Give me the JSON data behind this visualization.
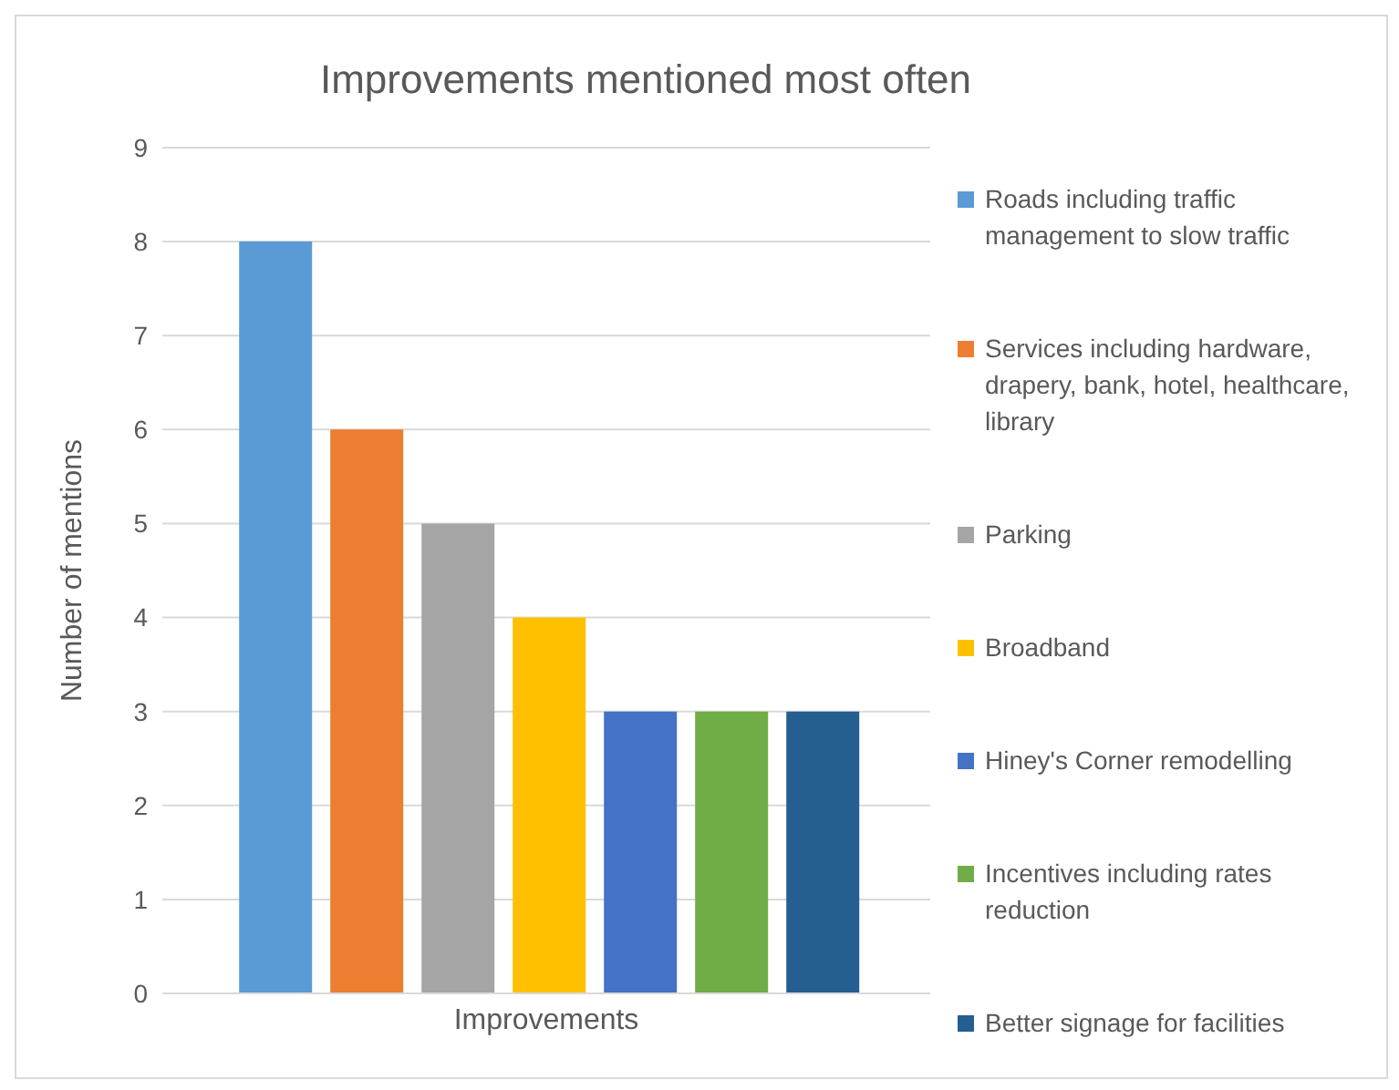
{
  "chart_data": {
    "type": "bar",
    "title": "Improvements mentioned most often",
    "ylabel": "Number of mentions",
    "categories": [
      "Improvements"
    ],
    "series": [
      {
        "name": "Roads including traffic management to slow traffic",
        "color": "#5b9bd5",
        "values": [
          8
        ]
      },
      {
        "name": "Services including hardware, drapery, bank, hotel, healthcare, library",
        "color": "#ed7d31",
        "values": [
          6
        ]
      },
      {
        "name": "Parking",
        "color": "#a5a5a5",
        "values": [
          5
        ]
      },
      {
        "name": "Broadband",
        "color": "#ffc000",
        "values": [
          4
        ]
      },
      {
        "name": "Hiney's Corner remodelling",
        "color": "#4472c4",
        "values": [
          3
        ]
      },
      {
        "name": "Incentives including rates reduction",
        "color": "#70ad47",
        "values": [
          3
        ]
      },
      {
        "name": "Better signage for facilities",
        "color": "#255e91",
        "values": [
          3
        ]
      }
    ],
    "ylim": [
      0,
      9
    ],
    "yticks": [
      0,
      1,
      2,
      3,
      4,
      5,
      6,
      7,
      8,
      9
    ],
    "grid": "y",
    "legend": "right"
  }
}
